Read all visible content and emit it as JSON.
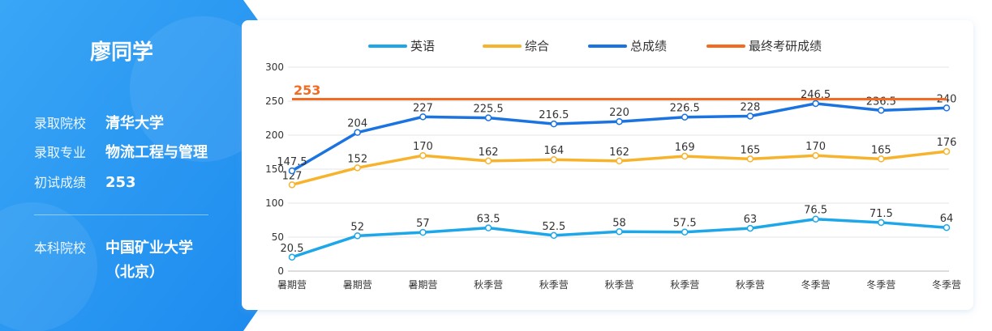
{
  "profile": {
    "name": "廖同学",
    "rows": [
      {
        "label": "录取院校",
        "value": "清华大学"
      },
      {
        "label": "录取专业",
        "value": "物流工程与管理"
      },
      {
        "label": "初试成绩",
        "value": "253"
      },
      {
        "label": "本科院校",
        "value": "中国矿业大学（北京）"
      }
    ]
  },
  "chart_data": {
    "type": "line",
    "categories": [
      "暑期营",
      "暑期营",
      "暑期营",
      "秋季营",
      "秋季营",
      "秋季营",
      "秋季营",
      "秋季营",
      "冬季营",
      "冬季营",
      "冬季营"
    ],
    "series": [
      {
        "name": "英语",
        "color": "#1ea7e8",
        "values": [
          20.5,
          52,
          57,
          63.5,
          52.5,
          58,
          57.5,
          63,
          76.5,
          71.5,
          64
        ]
      },
      {
        "name": "综合",
        "color": "#f7b32b",
        "values": [
          127,
          152,
          170,
          162,
          164,
          162,
          169,
          165,
          170,
          165,
          176
        ]
      },
      {
        "name": "总成绩",
        "color": "#1a73e0",
        "values": [
          147.5,
          204,
          227,
          225.5,
          216.5,
          220,
          226.5,
          228,
          246.5,
          236.5,
          240
        ]
      },
      {
        "name": "最终考研成绩",
        "color": "#f26b21",
        "values": [
          253,
          253,
          253,
          253,
          253,
          253,
          253,
          253,
          253,
          253,
          253
        ]
      }
    ],
    "ylim": [
      0,
      300
    ],
    "yticks": [
      0,
      50,
      100,
      150,
      200,
      250,
      300
    ],
    "grid": true,
    "legend": "top"
  }
}
